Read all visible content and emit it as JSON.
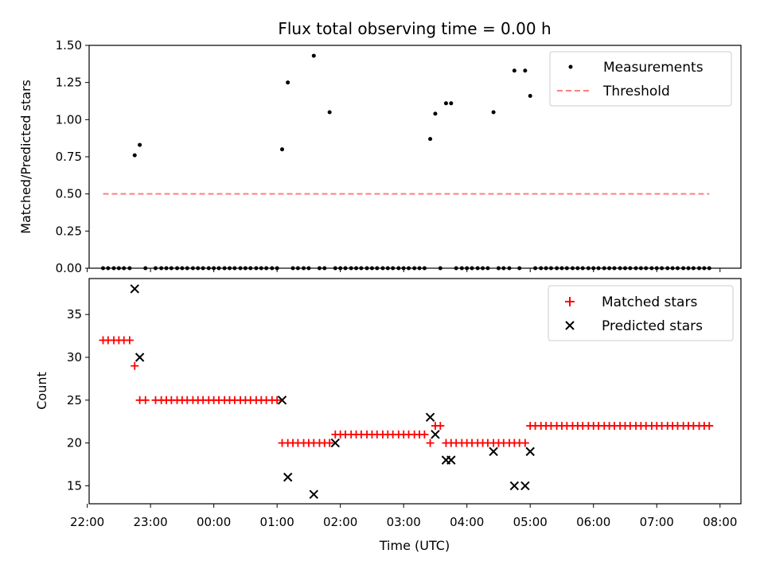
{
  "chart_data": [
    {
      "type": "scatter",
      "title": "Flux total observing time = 0.00 h",
      "xlabel": "",
      "ylabel": "Matched/Predicted stars",
      "xlim": [
        -1.97,
        8.33
      ],
      "ylim": [
        0.0,
        1.5
      ],
      "yticks": [
        0.0,
        0.25,
        0.5,
        0.75,
        1.0,
        1.25,
        1.5
      ],
      "ytick_labels": [
        "0.00",
        "0.25",
        "0.50",
        "0.75",
        "1.00",
        "1.25",
        "1.50"
      ],
      "grid": false,
      "legend_position": "top-right",
      "series": [
        {
          "name": "Measurements",
          "kind": "points",
          "color": "#000000",
          "x": [
            -1.75,
            -1.67,
            -1.58,
            -1.5,
            -1.42,
            -1.33,
            -1.25,
            -1.17,
            -1.08,
            -0.92,
            -0.83,
            -0.75,
            -0.67,
            -0.58,
            -0.5,
            -0.42,
            -0.33,
            -0.25,
            -0.17,
            -0.08,
            0.0,
            0.08,
            0.17,
            0.25,
            0.33,
            0.42,
            0.5,
            0.58,
            0.67,
            0.75,
            0.83,
            0.92,
            1.0,
            1.08,
            1.17,
            1.25,
            1.33,
            1.42,
            1.5,
            1.58,
            1.67,
            1.75,
            1.83,
            1.92,
            2.0,
            2.08,
            2.17,
            2.25,
            2.33,
            2.42,
            2.5,
            2.58,
            2.67,
            2.75,
            2.83,
            2.92,
            3.0,
            3.08,
            3.17,
            3.25,
            3.33,
            3.42,
            3.5,
            3.58,
            3.67,
            3.75,
            3.83,
            3.92,
            4.0,
            4.08,
            4.17,
            4.25,
            4.33,
            4.42,
            4.5,
            4.58,
            4.67,
            4.75,
            4.83,
            4.92,
            5.0,
            5.08,
            5.17,
            5.25,
            5.33,
            5.42,
            5.5,
            5.58,
            5.67,
            5.75,
            5.83,
            5.92,
            6.0,
            6.08,
            6.17,
            6.25,
            6.33,
            6.42,
            6.5,
            6.58,
            6.67,
            6.75,
            6.83,
            6.92,
            7.0,
            7.08,
            7.17,
            7.25,
            7.33,
            7.42,
            7.5,
            7.58,
            7.67,
            7.75,
            7.83
          ],
          "y": [
            0,
            0,
            0,
            0,
            0,
            0,
            0.76,
            0.83,
            0,
            0,
            0,
            0,
            0,
            0,
            0,
            0,
            0,
            0,
            0,
            0,
            0,
            0,
            0,
            0,
            0,
            0,
            0,
            0,
            0,
            0,
            0,
            0,
            0,
            0.8,
            1.25,
            0,
            0,
            0,
            0,
            1.43,
            0,
            0,
            1.05,
            0,
            0,
            0,
            0,
            0,
            0,
            0,
            0,
            0,
            0,
            0,
            0,
            0,
            0,
            0,
            0,
            0,
            0,
            0.87,
            1.04,
            0,
            1.11,
            1.11,
            0,
            0,
            0,
            0,
            0,
            0,
            0,
            1.05,
            0,
            0,
            0,
            1.33,
            0,
            1.33,
            1.16,
            0,
            0,
            0,
            0,
            0,
            0,
            0,
            0,
            0,
            0,
            0,
            0,
            0,
            0,
            0,
            0,
            0,
            0,
            0,
            0,
            0,
            0,
            0,
            0,
            0,
            0,
            0,
            0,
            0,
            0,
            0,
            0,
            0,
            0
          ]
        },
        {
          "name": "Threshold",
          "kind": "dashed-line",
          "color": "#ff7f7f",
          "x": [
            -1.75,
            7.83
          ],
          "y": [
            0.5,
            0.5
          ]
        }
      ]
    },
    {
      "type": "scatter",
      "title": "",
      "xlabel": "Time (UTC)",
      "ylabel": "Count",
      "xlim": [
        -1.97,
        8.33
      ],
      "ylim": [
        12.9,
        39.2
      ],
      "xticks": [
        -2,
        -1,
        0,
        1,
        2,
        3,
        4,
        5,
        6,
        7,
        8
      ],
      "xtick_labels": [
        "22:00",
        "23:00",
        "00:00",
        "01:00",
        "02:00",
        "03:00",
        "04:00",
        "05:00",
        "06:00",
        "07:00",
        "08:00"
      ],
      "yticks": [
        15,
        20,
        25,
        30,
        35
      ],
      "ytick_labels": [
        "15",
        "20",
        "25",
        "30",
        "35"
      ],
      "grid": false,
      "legend_position": "top-right",
      "series": [
        {
          "name": "Matched stars",
          "marker": "plus",
          "color": "#ff0000",
          "x": [
            -1.75,
            -1.67,
            -1.58,
            -1.5,
            -1.42,
            -1.33,
            -1.25,
            -1.17,
            -1.08,
            -0.92,
            -0.83,
            -0.75,
            -0.67,
            -0.58,
            -0.5,
            -0.42,
            -0.33,
            -0.25,
            -0.17,
            -0.08,
            0.0,
            0.08,
            0.17,
            0.25,
            0.33,
            0.42,
            0.5,
            0.58,
            0.67,
            0.75,
            0.83,
            0.92,
            1.0,
            1.08,
            1.17,
            1.25,
            1.33,
            1.42,
            1.5,
            1.58,
            1.67,
            1.75,
            1.83,
            1.92,
            2.0,
            2.08,
            2.17,
            2.25,
            2.33,
            2.42,
            2.5,
            2.58,
            2.67,
            2.75,
            2.83,
            2.92,
            3.0,
            3.08,
            3.17,
            3.25,
            3.33,
            3.42,
            3.5,
            3.58,
            3.67,
            3.75,
            3.83,
            3.92,
            4.0,
            4.08,
            4.17,
            4.25,
            4.33,
            4.42,
            4.5,
            4.58,
            4.67,
            4.75,
            4.83,
            4.92,
            5.0,
            5.08,
            5.17,
            5.25,
            5.33,
            5.42,
            5.5,
            5.58,
            5.67,
            5.75,
            5.83,
            5.92,
            6.0,
            6.08,
            6.17,
            6.25,
            6.33,
            6.42,
            6.5,
            6.58,
            6.67,
            6.75,
            6.83,
            6.92,
            7.0,
            7.08,
            7.17,
            7.25,
            7.33,
            7.42,
            7.5,
            7.58,
            7.67,
            7.75,
            7.83
          ],
          "y": [
            32,
            32,
            32,
            32,
            32,
            32,
            29,
            25,
            25,
            25,
            25,
            25,
            25,
            25,
            25,
            25,
            25,
            25,
            25,
            25,
            25,
            25,
            25,
            25,
            25,
            25,
            25,
            25,
            25,
            25,
            25,
            25,
            25,
            20,
            20,
            20,
            20,
            20,
            20,
            20,
            20,
            20,
            20,
            21,
            21,
            21,
            21,
            21,
            21,
            21,
            21,
            21,
            21,
            21,
            21,
            21,
            21,
            21,
            21,
            21,
            21,
            20,
            22,
            22,
            20,
            20,
            20,
            20,
            20,
            20,
            20,
            20,
            20,
            20,
            20,
            20,
            20,
            20,
            20,
            20,
            22,
            22,
            22,
            22,
            22,
            22,
            22,
            22,
            22,
            22,
            22,
            22,
            22,
            22,
            22,
            22,
            22,
            22,
            22,
            22,
            22,
            22,
            22,
            22,
            22,
            22,
            22,
            22,
            22,
            22,
            22,
            22,
            22,
            22,
            22
          ]
        },
        {
          "name": "Predicted stars",
          "marker": "x",
          "color": "#000000",
          "x": [
            -1.25,
            -1.17,
            1.08,
            1.17,
            1.58,
            1.92,
            3.42,
            3.5,
            3.67,
            3.75,
            4.42,
            4.75,
            4.92,
            5.0
          ],
          "y": [
            38,
            30,
            25,
            16,
            14,
            20,
            23,
            21,
            18,
            18,
            19,
            15,
            15,
            19
          ]
        }
      ]
    }
  ]
}
